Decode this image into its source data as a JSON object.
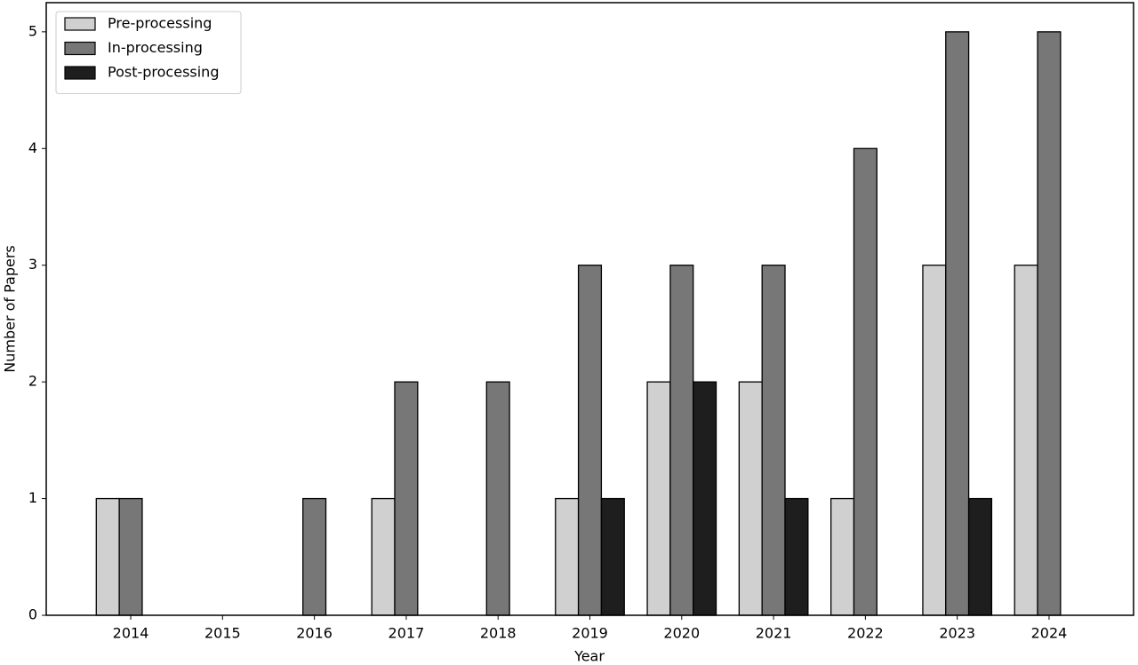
{
  "chart_data": {
    "type": "bar",
    "x_label": "Year",
    "y_label": "Number of Papers",
    "categories": [
      "2014",
      "2015",
      "2016",
      "2017",
      "2018",
      "2019",
      "2020",
      "2021",
      "2022",
      "2023",
      "2024"
    ],
    "series": [
      {
        "name": "Pre-processing",
        "color": "#d0d0d0",
        "values": [
          1,
          0,
          0,
          1,
          0,
          1,
          2,
          2,
          1,
          3,
          3
        ]
      },
      {
        "name": "In-processing",
        "color": "#777777",
        "values": [
          1,
          0,
          1,
          2,
          2,
          3,
          3,
          3,
          4,
          5,
          5
        ]
      },
      {
        "name": "Post-processing",
        "color": "#1e1e1e",
        "values": [
          0,
          0,
          0,
          0,
          0,
          1,
          2,
          1,
          0,
          1,
          0
        ]
      }
    ],
    "ylim": [
      0,
      5.25
    ],
    "yticks": [
      0,
      1,
      2,
      3,
      4,
      5
    ],
    "grid": false,
    "legend": "upper-left"
  }
}
